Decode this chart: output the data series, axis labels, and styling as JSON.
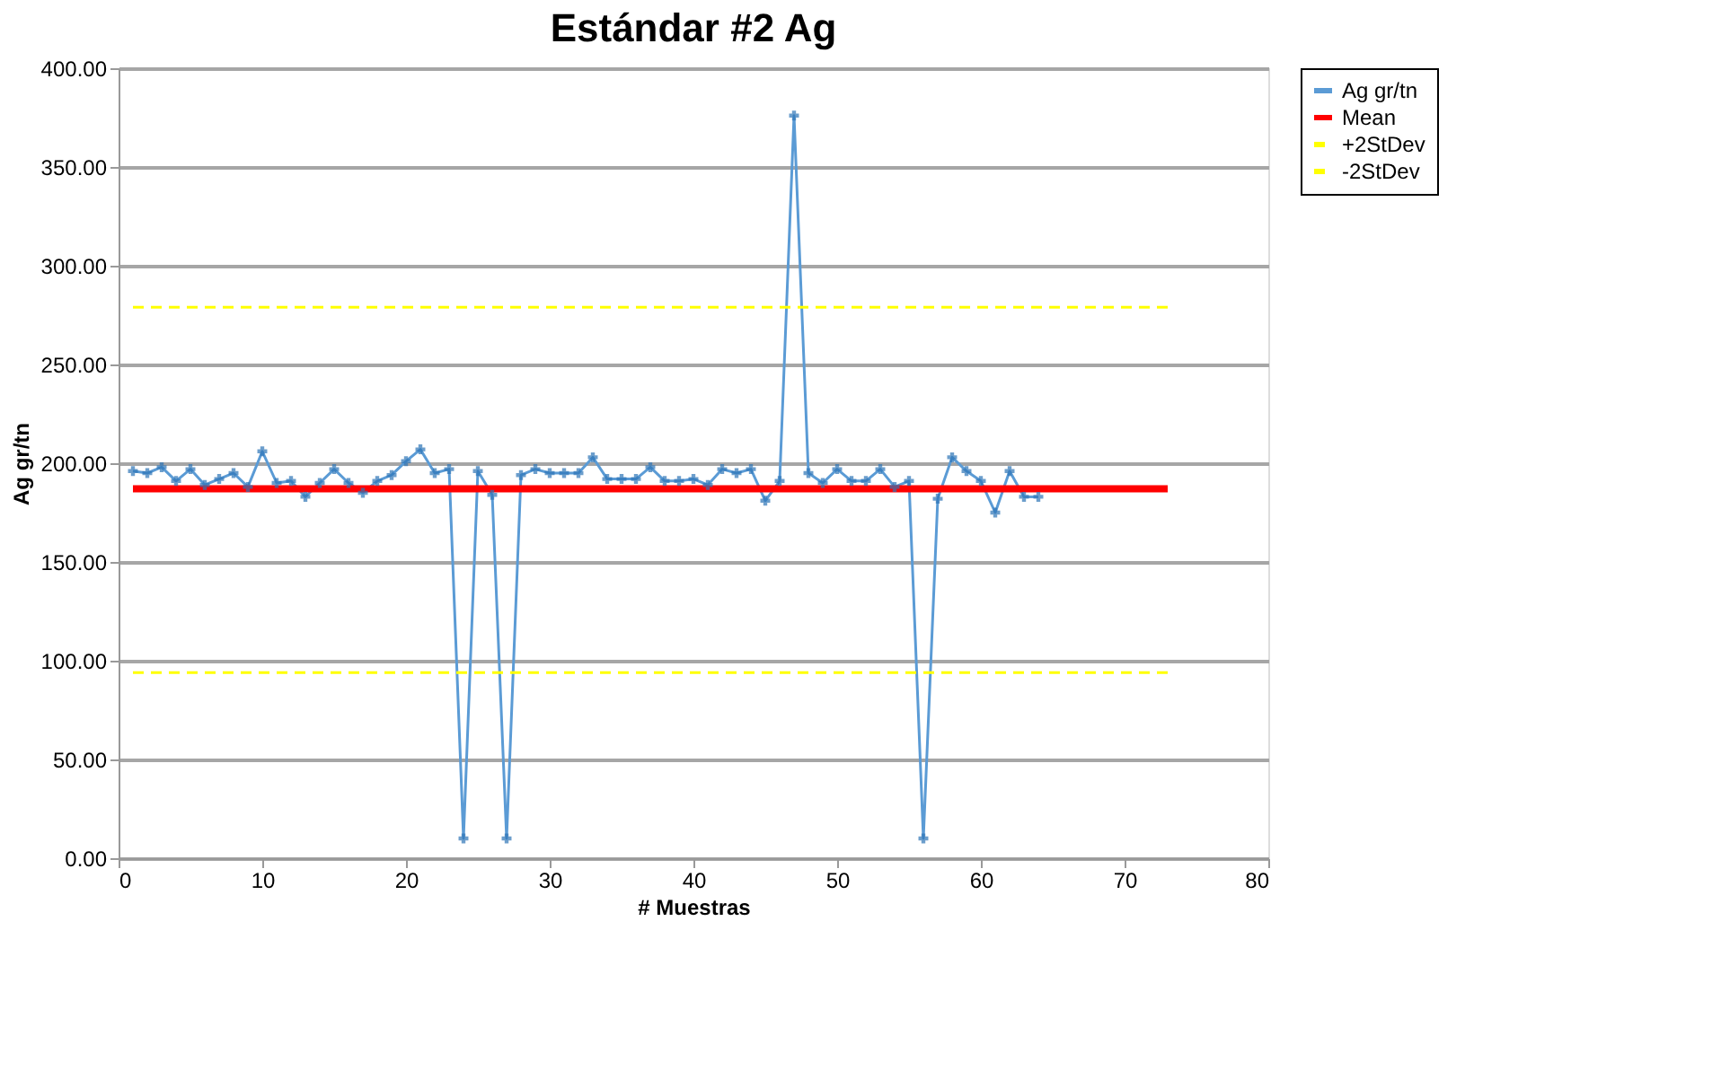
{
  "chart_data": {
    "type": "line",
    "title": "Estándar #2 Ag",
    "xlabel": "# Muestras",
    "ylabel": "Ag gr/tn",
    "xlim": [
      0,
      80
    ],
    "xticks": [
      0,
      10,
      20,
      30,
      40,
      50,
      60,
      70,
      80
    ],
    "ylim": [
      0,
      400
    ],
    "yticks": [
      {
        "value": 0,
        "label": "0.00"
      },
      {
        "value": 50,
        "label": "50.00"
      },
      {
        "value": 100,
        "label": "100.00"
      },
      {
        "value": 150,
        "label": "150.00"
      },
      {
        "value": 200,
        "label": "200.00"
      },
      {
        "value": 250,
        "label": "250.00"
      },
      {
        "value": 300,
        "label": "300.00"
      },
      {
        "value": 350,
        "label": "350.00"
      },
      {
        "value": 400,
        "label": "400.00"
      }
    ],
    "grid": "y",
    "legend": "right",
    "series": [
      {
        "name": "Ag gr/tn",
        "color": "#5b9bd5",
        "marker": "cross",
        "line_style": "solid",
        "x": [
          1,
          2,
          3,
          4,
          5,
          6,
          7,
          8,
          9,
          10,
          11,
          12,
          13,
          14,
          15,
          16,
          17,
          18,
          19,
          20,
          21,
          22,
          23,
          24,
          25,
          26,
          27,
          28,
          29,
          30,
          31,
          32,
          33,
          34,
          35,
          36,
          37,
          38,
          39,
          40,
          41,
          42,
          43,
          44,
          45,
          46,
          47,
          48,
          49,
          50,
          51,
          52,
          53,
          54,
          55,
          56,
          57,
          58,
          59,
          60,
          61,
          62,
          63,
          64
        ],
        "values": [
          196,
          195,
          198,
          191,
          197,
          189,
          192,
          195,
          188,
          206,
          190,
          191,
          183,
          190,
          197,
          190,
          185,
          191,
          194,
          201,
          207,
          195,
          197,
          10,
          196,
          184,
          10,
          194,
          197,
          195,
          195,
          195,
          203,
          192,
          192,
          192,
          198,
          191,
          191,
          192,
          189,
          197,
          195,
          197,
          181,
          191,
          376,
          195,
          190,
          197,
          191,
          191,
          197,
          188,
          191,
          10,
          182,
          203,
          196,
          191,
          175,
          196,
          183,
          183
        ]
      },
      {
        "name": "Mean",
        "color": "#ff0000",
        "marker": "none",
        "line_style": "solid",
        "x": [
          1,
          73
        ],
        "values": [
          187,
          187
        ]
      },
      {
        "name": "+2StDev",
        "color": "#ffff00",
        "marker": "none",
        "line_style": "dashed",
        "x": [
          1,
          73
        ],
        "values": [
          279,
          279
        ]
      },
      {
        "name": "-2StDev",
        "color": "#ffff00",
        "marker": "none",
        "line_style": "dashed",
        "x": [
          1,
          73
        ],
        "values": [
          94,
          94
        ]
      }
    ]
  }
}
